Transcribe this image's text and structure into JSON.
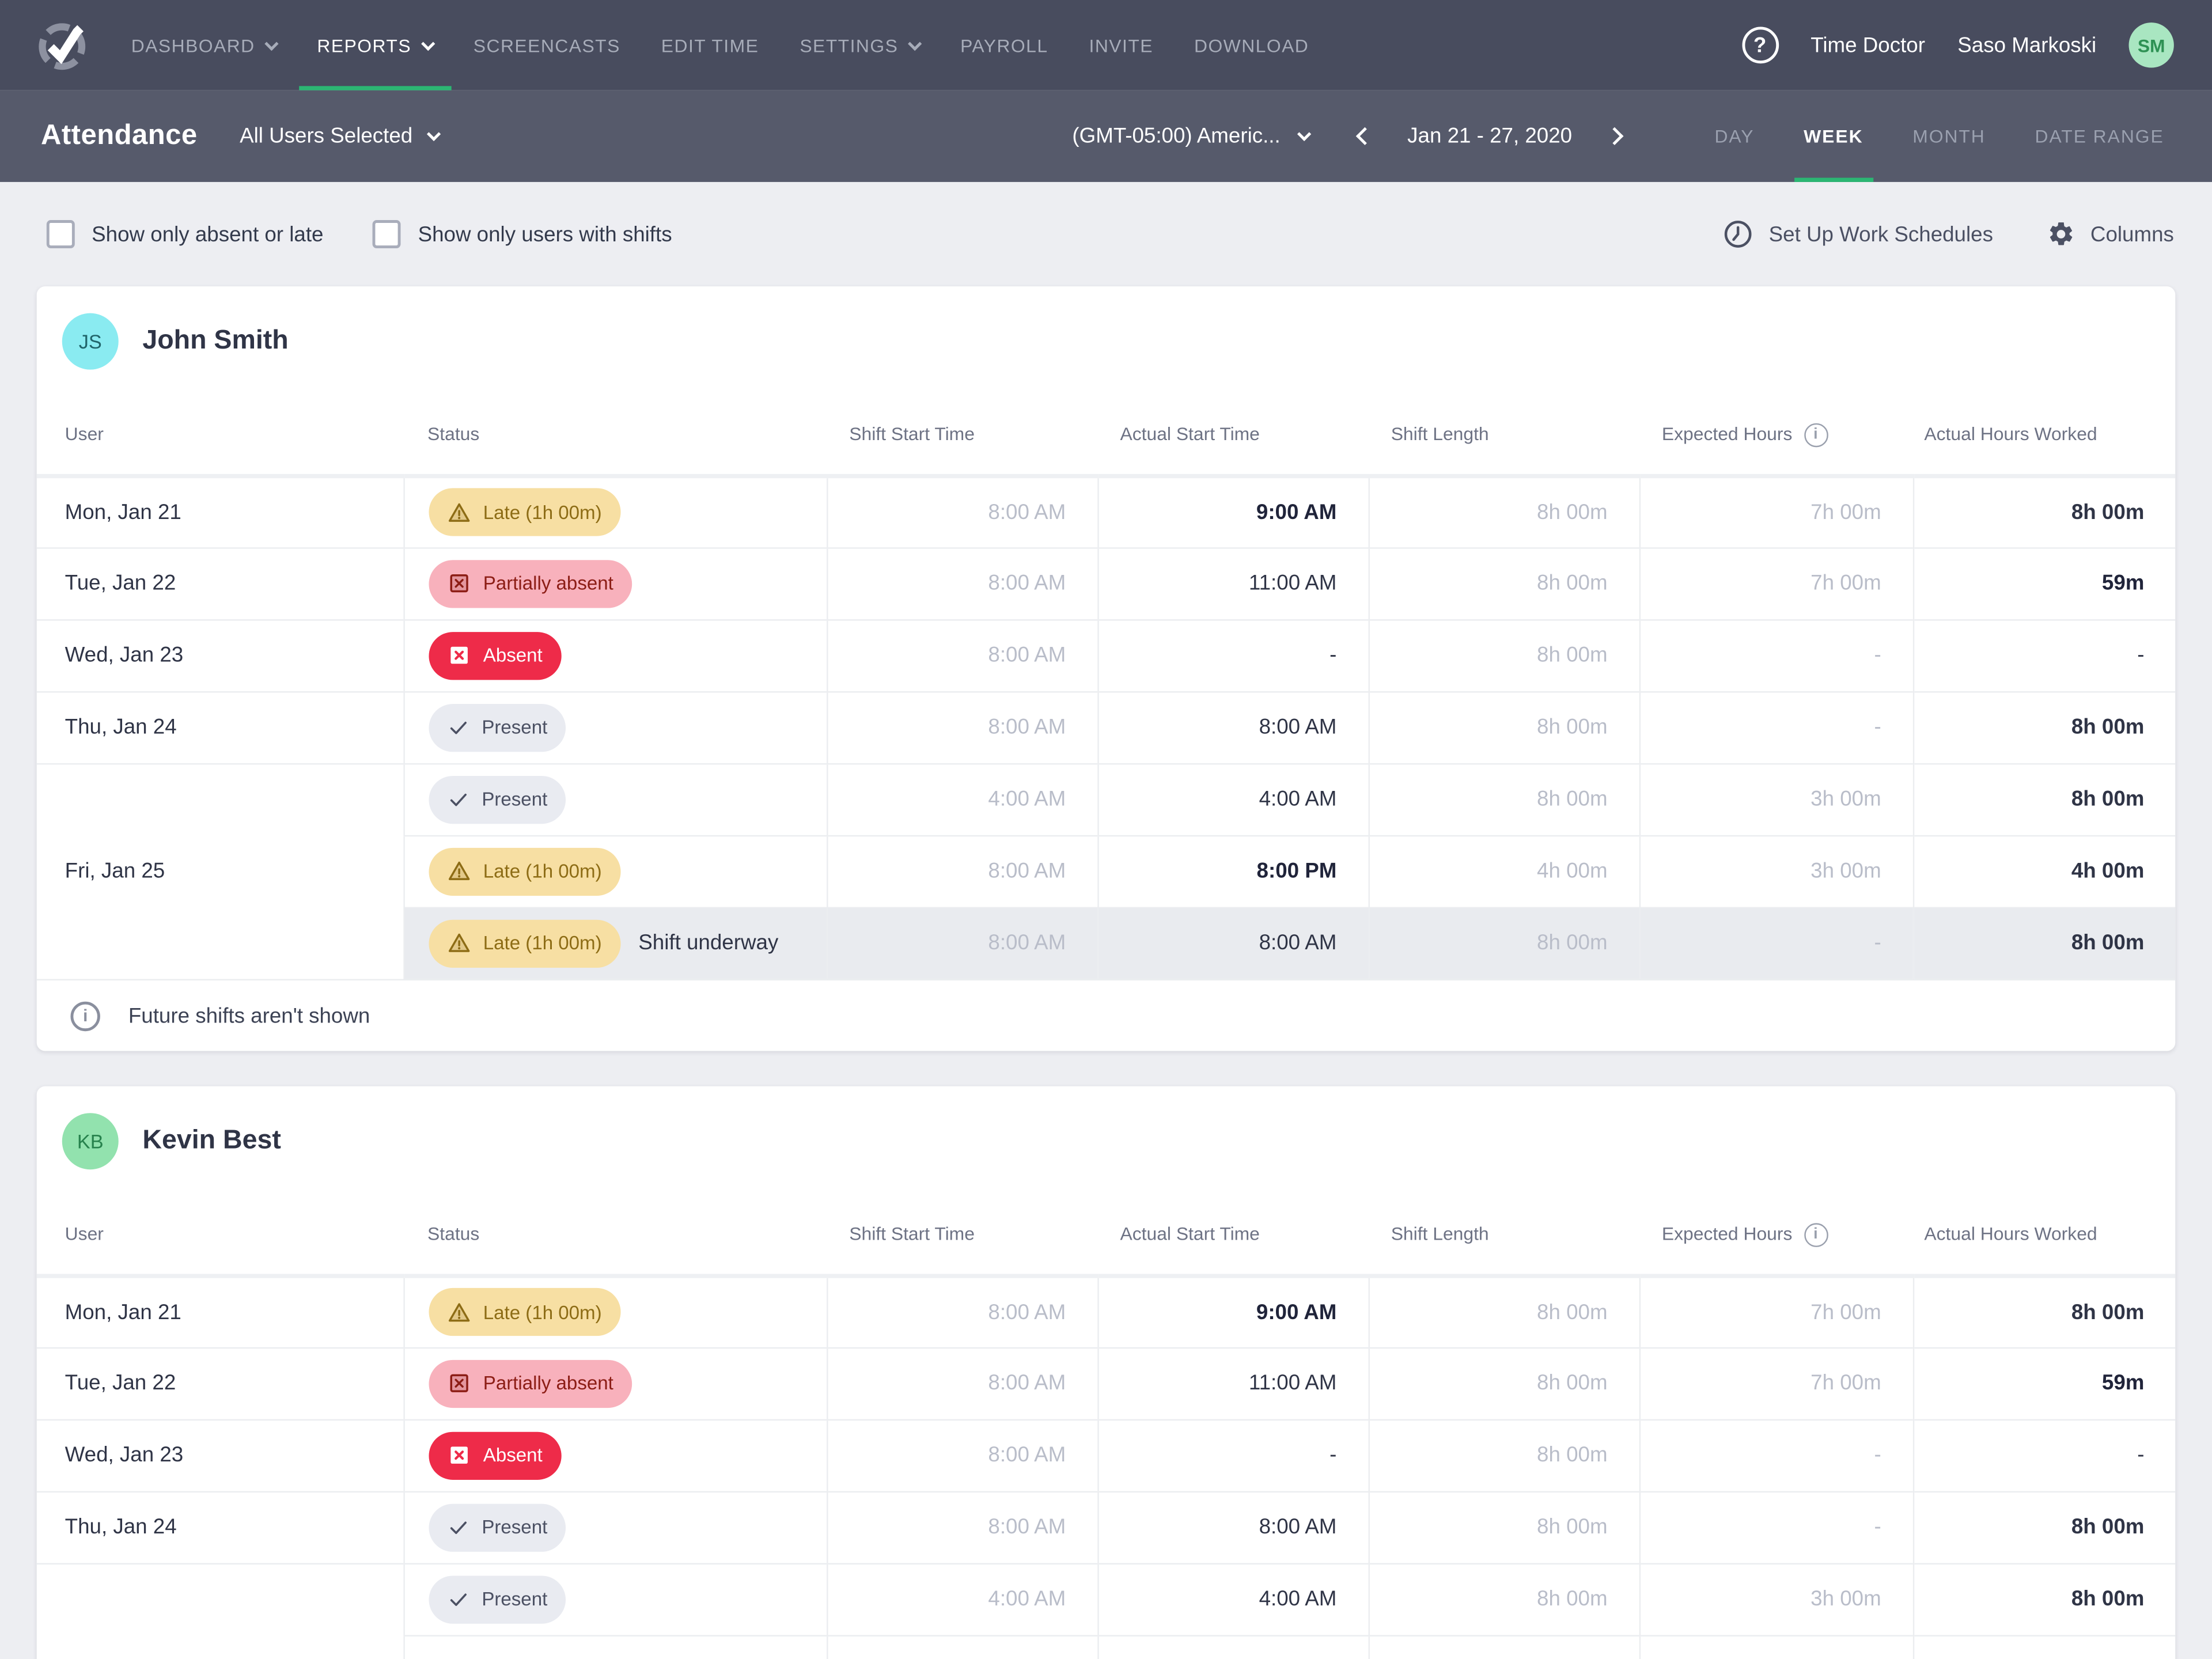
{
  "colors": {
    "nav_bg": "#484c5e",
    "subnav_bg": "#565a6b",
    "page_bg": "#edeef2",
    "accent_green": "#2bb673",
    "status": {
      "late": {
        "bg": "#f7dfa3",
        "fg": "#8d6c15"
      },
      "partial": {
        "bg": "#f8b1bc",
        "fg": "#8c1d15"
      },
      "absent": {
        "bg": "#ee2b49",
        "fg": "#ffffff"
      },
      "present": {
        "bg": "#e9ebf1",
        "fg": "#4b5063"
      }
    },
    "avatars": {
      "sm": {
        "bg": "#a9e6c1",
        "fg": "#2e9154"
      },
      "js": {
        "bg": "#8aebf1",
        "fg": "#20646a"
      },
      "kb": {
        "bg": "#92e2ae",
        "fg": "#27824d"
      }
    }
  },
  "nav": {
    "items": [
      {
        "label": "DASHBOARD",
        "chevron": true,
        "active": false
      },
      {
        "label": "REPORTS",
        "chevron": true,
        "active": true
      },
      {
        "label": "SCREENCASTS",
        "chevron": false,
        "active": false
      },
      {
        "label": "EDIT TIME",
        "chevron": false,
        "active": false
      },
      {
        "label": "SETTINGS",
        "chevron": true,
        "active": false
      },
      {
        "label": "PAYROLL",
        "chevron": false,
        "active": false
      },
      {
        "label": "INVITE",
        "chevron": false,
        "active": false
      },
      {
        "label": "DOWNLOAD",
        "chevron": false,
        "active": false
      }
    ],
    "company": "Time Doctor",
    "user": "Saso Markoski",
    "user_initials": "SM"
  },
  "subnav": {
    "title": "Attendance",
    "user_selector": "All Users Selected",
    "timezone": "(GMT-05:00) Americ...",
    "date_range": "Jan 21 - 27, 2020",
    "tabs": [
      {
        "label": "DAY",
        "active": false
      },
      {
        "label": "WEEK",
        "active": true
      },
      {
        "label": "MONTH",
        "active": false
      },
      {
        "label": "DATE RANGE",
        "active": false
      }
    ]
  },
  "filters": {
    "show_absent_late": {
      "label": "Show only absent or late",
      "checked": false
    },
    "show_with_shifts": {
      "label": "Show only users with shifts",
      "checked": false
    },
    "setup_schedules": "Set Up Work Schedules",
    "columns": "Columns"
  },
  "table": {
    "headers": {
      "user": "User",
      "status": "Status",
      "shift_start": "Shift Start Time",
      "actual_start": "Actual Start Time",
      "shift_length": "Shift Length",
      "expected": "Expected Hours",
      "worked": "Actual Hours Worked"
    }
  },
  "users": [
    {
      "name": "John Smith",
      "initials": "JS",
      "avatar": "js",
      "note": "Future shifts aren't shown",
      "cutoff": false,
      "groups": [
        {
          "date": "Mon, Jan 21",
          "rows": [
            {
              "status": {
                "type": "late",
                "label": "Late (1h 00m)"
              },
              "shift_start": "8:00 AM",
              "actual_start": {
                "text": "9:00 AM",
                "tone": "bold"
              },
              "shift_length": "8h 00m",
              "expected": "7h 00m",
              "worked": {
                "text": "8h 00m",
                "tone": "semi"
              }
            }
          ]
        },
        {
          "date": "Tue, Jan 22",
          "rows": [
            {
              "status": {
                "type": "partial",
                "label": "Partially absent"
              },
              "shift_start": "8:00 AM",
              "actual_start": {
                "text": "11:00 AM",
                "tone": "dark"
              },
              "shift_length": "8h 00m",
              "expected": "7h 00m",
              "worked": {
                "text": "59m",
                "tone": "bold"
              }
            }
          ]
        },
        {
          "date": "Wed, Jan 23",
          "rows": [
            {
              "status": {
                "type": "absent",
                "label": "Absent"
              },
              "shift_start": "8:00 AM",
              "actual_start": {
                "text": "-",
                "tone": "dark"
              },
              "shift_length": "8h 00m",
              "expected": "-",
              "worked": {
                "text": "-",
                "tone": "dark"
              }
            }
          ]
        },
        {
          "date": "Thu, Jan 24",
          "rows": [
            {
              "status": {
                "type": "present",
                "label": "Present"
              },
              "shift_start": "8:00 AM",
              "actual_start": {
                "text": "8:00 AM",
                "tone": "dark"
              },
              "shift_length": "8h 00m",
              "expected": "-",
              "worked": {
                "text": "8h 00m",
                "tone": "semi"
              }
            }
          ]
        },
        {
          "date": "Fri, Jan 25",
          "rows": [
            {
              "status": {
                "type": "present",
                "label": "Present"
              },
              "shift_start": "4:00 AM",
              "actual_start": {
                "text": "4:00 AM",
                "tone": "dark"
              },
              "shift_length": "8h 00m",
              "expected": "3h 00m",
              "worked": {
                "text": "8h 00m",
                "tone": "semi"
              }
            },
            {
              "status": {
                "type": "late",
                "label": "Late (1h 00m)"
              },
              "shift_start": "8:00 AM",
              "actual_start": {
                "text": "8:00 PM",
                "tone": "bold"
              },
              "shift_length": "4h 00m",
              "expected": "3h 00m",
              "worked": {
                "text": "4h 00m",
                "tone": "semi"
              }
            },
            {
              "status": {
                "type": "late",
                "label": "Late (1h 00m)",
                "extra": "Shift underway"
              },
              "highlight": true,
              "shift_start": "8:00 AM",
              "actual_start": {
                "text": "8:00 AM",
                "tone": "dark"
              },
              "shift_length": "8h 00m",
              "expected": "-",
              "worked": {
                "text": "8h 00m",
                "tone": "semi"
              }
            }
          ]
        }
      ]
    },
    {
      "name": "Kevin Best",
      "initials": "KB",
      "avatar": "kb",
      "note": "",
      "cutoff": true,
      "groups": [
        {
          "date": "Mon, Jan 21",
          "rows": [
            {
              "status": {
                "type": "late",
                "label": "Late (1h 00m)"
              },
              "shift_start": "8:00 AM",
              "actual_start": {
                "text": "9:00 AM",
                "tone": "bold"
              },
              "shift_length": "8h 00m",
              "expected": "7h 00m",
              "worked": {
                "text": "8h 00m",
                "tone": "semi"
              }
            }
          ]
        },
        {
          "date": "Tue, Jan 22",
          "rows": [
            {
              "status": {
                "type": "partial",
                "label": "Partially absent"
              },
              "shift_start": "8:00 AM",
              "actual_start": {
                "text": "11:00 AM",
                "tone": "dark"
              },
              "shift_length": "8h 00m",
              "expected": "7h 00m",
              "worked": {
                "text": "59m",
                "tone": "bold"
              }
            }
          ]
        },
        {
          "date": "Wed, Jan 23",
          "rows": [
            {
              "status": {
                "type": "absent",
                "label": "Absent"
              },
              "shift_start": "8:00 AM",
              "actual_start": {
                "text": "-",
                "tone": "dark"
              },
              "shift_length": "8h 00m",
              "expected": "-",
              "worked": {
                "text": "-",
                "tone": "dark"
              }
            }
          ]
        },
        {
          "date": "Thu, Jan 24",
          "rows": [
            {
              "status": {
                "type": "present",
                "label": "Present"
              },
              "shift_start": "8:00 AM",
              "actual_start": {
                "text": "8:00 AM",
                "tone": "dark"
              },
              "shift_length": "8h 00m",
              "expected": "-",
              "worked": {
                "text": "8h 00m",
                "tone": "semi"
              }
            }
          ]
        },
        {
          "date": "",
          "rows": [
            {
              "status": {
                "type": "present",
                "label": "Present"
              },
              "shift_start": "4:00 AM",
              "actual_start": {
                "text": "4:00 AM",
                "tone": "dark"
              },
              "shift_length": "8h 00m",
              "expected": "3h 00m",
              "worked": {
                "text": "8h 00m",
                "tone": "semi"
              }
            }
          ]
        }
      ]
    }
  ]
}
